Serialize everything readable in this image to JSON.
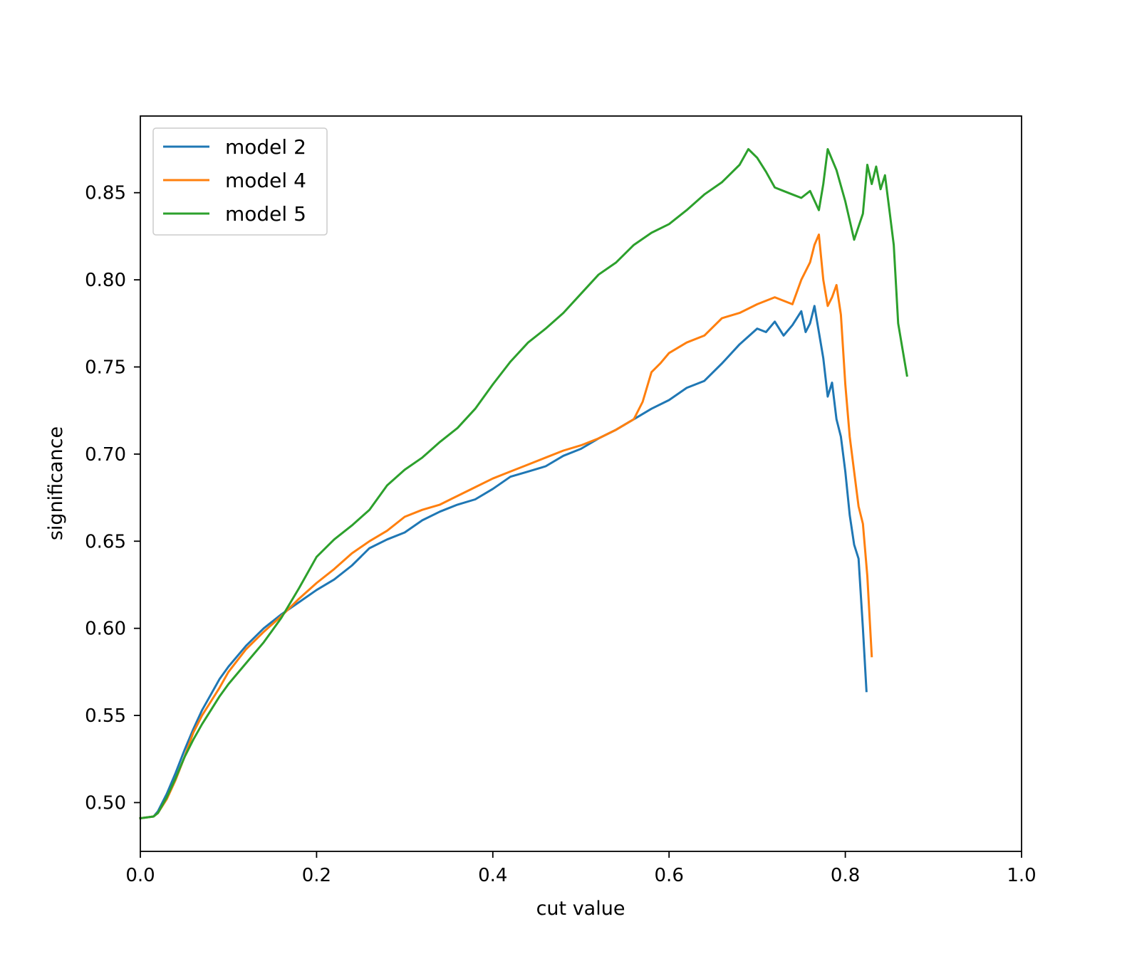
{
  "chart_data": {
    "type": "line",
    "title": "",
    "xlabel": "cut value",
    "ylabel": "significance",
    "xlim": [
      0.0,
      1.0
    ],
    "ylim": [
      0.472,
      0.894
    ],
    "xticks": [
      "0.0",
      "0.2",
      "0.4",
      "0.6",
      "0.8",
      "1.0"
    ],
    "xtick_values": [
      0.0,
      0.2,
      0.4,
      0.6,
      0.8,
      1.0
    ],
    "yticks": [
      "0.50",
      "0.55",
      "0.60",
      "0.65",
      "0.70",
      "0.75",
      "0.80",
      "0.85"
    ],
    "ytick_values": [
      0.5,
      0.55,
      0.6,
      0.65,
      0.7,
      0.75,
      0.8,
      0.85
    ],
    "grid": false,
    "legend": "top-left",
    "series": [
      {
        "name": "model 2",
        "color": "#1f77b4",
        "x": [
          0.0,
          0.015,
          0.02,
          0.03,
          0.04,
          0.05,
          0.06,
          0.07,
          0.08,
          0.09,
          0.1,
          0.12,
          0.14,
          0.16,
          0.18,
          0.2,
          0.22,
          0.24,
          0.26,
          0.28,
          0.3,
          0.32,
          0.34,
          0.36,
          0.38,
          0.4,
          0.42,
          0.44,
          0.46,
          0.48,
          0.5,
          0.52,
          0.54,
          0.56,
          0.58,
          0.6,
          0.62,
          0.64,
          0.66,
          0.68,
          0.7,
          0.71,
          0.72,
          0.73,
          0.74,
          0.75,
          0.755,
          0.76,
          0.765,
          0.77,
          0.775,
          0.78,
          0.785,
          0.79,
          0.795,
          0.8,
          0.805,
          0.81,
          0.815,
          0.82,
          0.824
        ],
        "y": [
          0.491,
          0.492,
          0.495,
          0.505,
          0.517,
          0.53,
          0.542,
          0.553,
          0.562,
          0.571,
          0.578,
          0.59,
          0.6,
          0.608,
          0.615,
          0.622,
          0.628,
          0.636,
          0.646,
          0.651,
          0.655,
          0.662,
          0.667,
          0.671,
          0.674,
          0.68,
          0.687,
          0.69,
          0.693,
          0.699,
          0.703,
          0.709,
          0.714,
          0.72,
          0.726,
          0.731,
          0.738,
          0.742,
          0.752,
          0.763,
          0.772,
          0.77,
          0.776,
          0.768,
          0.774,
          0.782,
          0.77,
          0.775,
          0.785,
          0.77,
          0.755,
          0.733,
          0.741,
          0.72,
          0.71,
          0.69,
          0.665,
          0.648,
          0.64,
          0.6,
          0.564
        ]
      },
      {
        "name": "model 4",
        "color": "#ff7f0e",
        "x": [
          0.0,
          0.015,
          0.02,
          0.03,
          0.04,
          0.05,
          0.06,
          0.07,
          0.08,
          0.09,
          0.1,
          0.12,
          0.14,
          0.16,
          0.18,
          0.2,
          0.22,
          0.24,
          0.26,
          0.28,
          0.3,
          0.32,
          0.34,
          0.36,
          0.38,
          0.4,
          0.42,
          0.44,
          0.46,
          0.48,
          0.5,
          0.52,
          0.54,
          0.56,
          0.57,
          0.58,
          0.59,
          0.6,
          0.62,
          0.64,
          0.66,
          0.68,
          0.7,
          0.72,
          0.74,
          0.75,
          0.76,
          0.765,
          0.77,
          0.775,
          0.78,
          0.785,
          0.79,
          0.795,
          0.8,
          0.805,
          0.81,
          0.815,
          0.82,
          0.825,
          0.83
        ],
        "y": [
          0.491,
          0.492,
          0.494,
          0.502,
          0.513,
          0.526,
          0.54,
          0.55,
          0.558,
          0.566,
          0.575,
          0.588,
          0.598,
          0.607,
          0.617,
          0.626,
          0.634,
          0.643,
          0.65,
          0.656,
          0.664,
          0.668,
          0.671,
          0.676,
          0.681,
          0.686,
          0.69,
          0.694,
          0.698,
          0.702,
          0.705,
          0.709,
          0.714,
          0.72,
          0.73,
          0.747,
          0.752,
          0.758,
          0.764,
          0.768,
          0.778,
          0.781,
          0.786,
          0.79,
          0.786,
          0.8,
          0.81,
          0.82,
          0.826,
          0.8,
          0.785,
          0.79,
          0.797,
          0.78,
          0.74,
          0.71,
          0.69,
          0.67,
          0.66,
          0.63,
          0.584
        ]
      },
      {
        "name": "model 5",
        "color": "#2ca02c",
        "x": [
          0.0,
          0.015,
          0.02,
          0.03,
          0.04,
          0.05,
          0.06,
          0.07,
          0.08,
          0.09,
          0.1,
          0.12,
          0.14,
          0.16,
          0.18,
          0.2,
          0.22,
          0.24,
          0.26,
          0.28,
          0.3,
          0.32,
          0.34,
          0.36,
          0.38,
          0.4,
          0.42,
          0.44,
          0.46,
          0.48,
          0.5,
          0.52,
          0.54,
          0.56,
          0.58,
          0.6,
          0.62,
          0.64,
          0.66,
          0.68,
          0.69,
          0.7,
          0.71,
          0.72,
          0.73,
          0.74,
          0.75,
          0.76,
          0.77,
          0.775,
          0.78,
          0.79,
          0.8,
          0.81,
          0.82,
          0.825,
          0.83,
          0.835,
          0.84,
          0.845,
          0.85,
          0.855,
          0.86,
          0.865,
          0.87
        ],
        "y": [
          0.491,
          0.492,
          0.494,
          0.503,
          0.514,
          0.526,
          0.536,
          0.545,
          0.553,
          0.561,
          0.568,
          0.58,
          0.592,
          0.606,
          0.623,
          0.641,
          0.651,
          0.659,
          0.668,
          0.682,
          0.691,
          0.698,
          0.707,
          0.715,
          0.726,
          0.74,
          0.753,
          0.764,
          0.772,
          0.781,
          0.792,
          0.803,
          0.81,
          0.82,
          0.827,
          0.832,
          0.84,
          0.849,
          0.856,
          0.866,
          0.875,
          0.87,
          0.862,
          0.853,
          0.851,
          0.849,
          0.847,
          0.851,
          0.84,
          0.855,
          0.875,
          0.863,
          0.845,
          0.823,
          0.838,
          0.866,
          0.855,
          0.865,
          0.852,
          0.86,
          0.84,
          0.82,
          0.775,
          0.76,
          0.745
        ]
      }
    ]
  }
}
